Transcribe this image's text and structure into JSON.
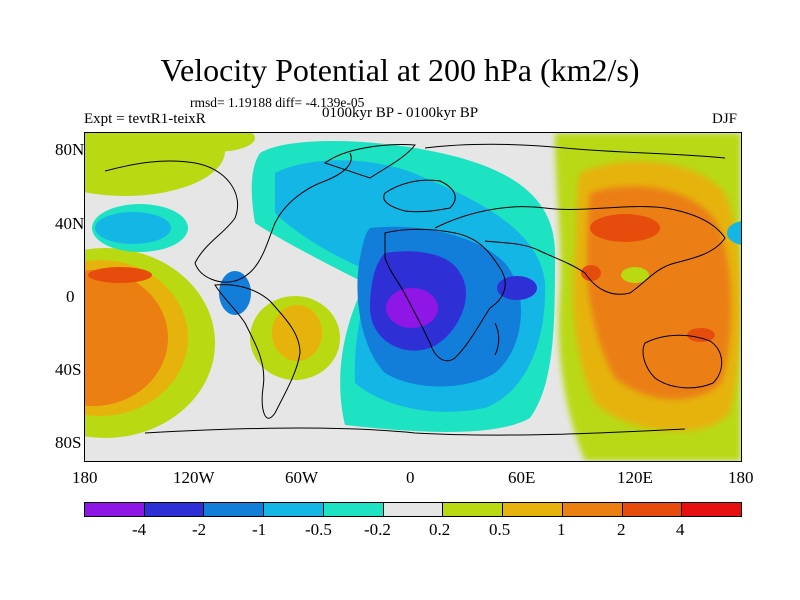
{
  "title": "Velocity Potential at 200 hPa (km2/s)",
  "stats": "rmsd= 1.19188 diff= -4.139e-05",
  "experiment": "Expt = tevtR1-teixR",
  "period": "0100kyr BP - 0100kyr BP",
  "season": "DJF",
  "lat_labels": [
    "80N",
    "40N",
    "0",
    "40S",
    "80S"
  ],
  "lon_labels": [
    "180",
    "120W",
    "60W",
    "0",
    "60E",
    "120E",
    "180"
  ],
  "colorbar": {
    "labels": [
      "-4",
      "-2",
      "-1",
      "-0.5",
      "-0.2",
      "0.2",
      "0.5",
      "1",
      "2",
      "4"
    ],
    "colors": [
      "#8f17e6",
      "#2f2fd6",
      "#127ed9",
      "#14b6e6",
      "#1ee3c2",
      "#e6e6e6",
      "#b9d912",
      "#e6b30d",
      "#eb7f12",
      "#e64d0d",
      "#e61010"
    ]
  }
}
